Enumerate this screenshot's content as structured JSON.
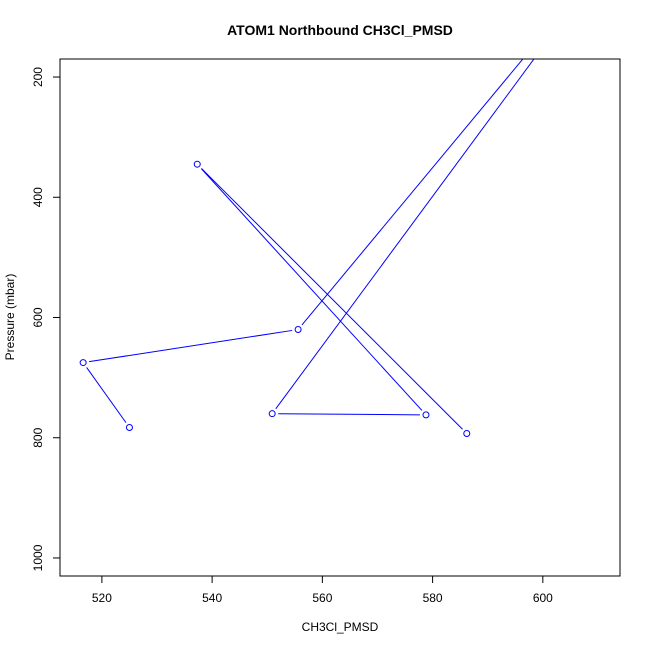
{
  "chart_data": {
    "type": "line",
    "title": "ATOM1 Northbound CH3Cl_PMSD",
    "xlabel": "CH3Cl_PMSD",
    "ylabel": "Pressure (mbar)",
    "xlim": [
      512.4,
      614.0
    ],
    "ylim": [
      1030,
      170
    ],
    "y_reversed": true,
    "grid": false,
    "x_ticks": [
      520,
      540,
      560,
      580,
      600
    ],
    "y_ticks": [
      200,
      400,
      600,
      800,
      1000
    ],
    "series": [
      {
        "color": "#0000ff",
        "marker": "open-circle",
        "points": [
          {
            "x": 525.0,
            "y": 783
          },
          {
            "x": 516.6,
            "y": 675
          },
          {
            "x": 555.6,
            "y": 620
          },
          {
            "x": 600.0,
            "y": 130,
            "marker": false
          },
          {
            "x": 600.0,
            "y": 150,
            "marker": false
          },
          {
            "x": 550.9,
            "y": 760
          },
          {
            "x": 578.8,
            "y": 762
          },
          {
            "x": 537.3,
            "y": 345
          },
          {
            "x": 586.2,
            "y": 793
          }
        ]
      }
    ]
  }
}
